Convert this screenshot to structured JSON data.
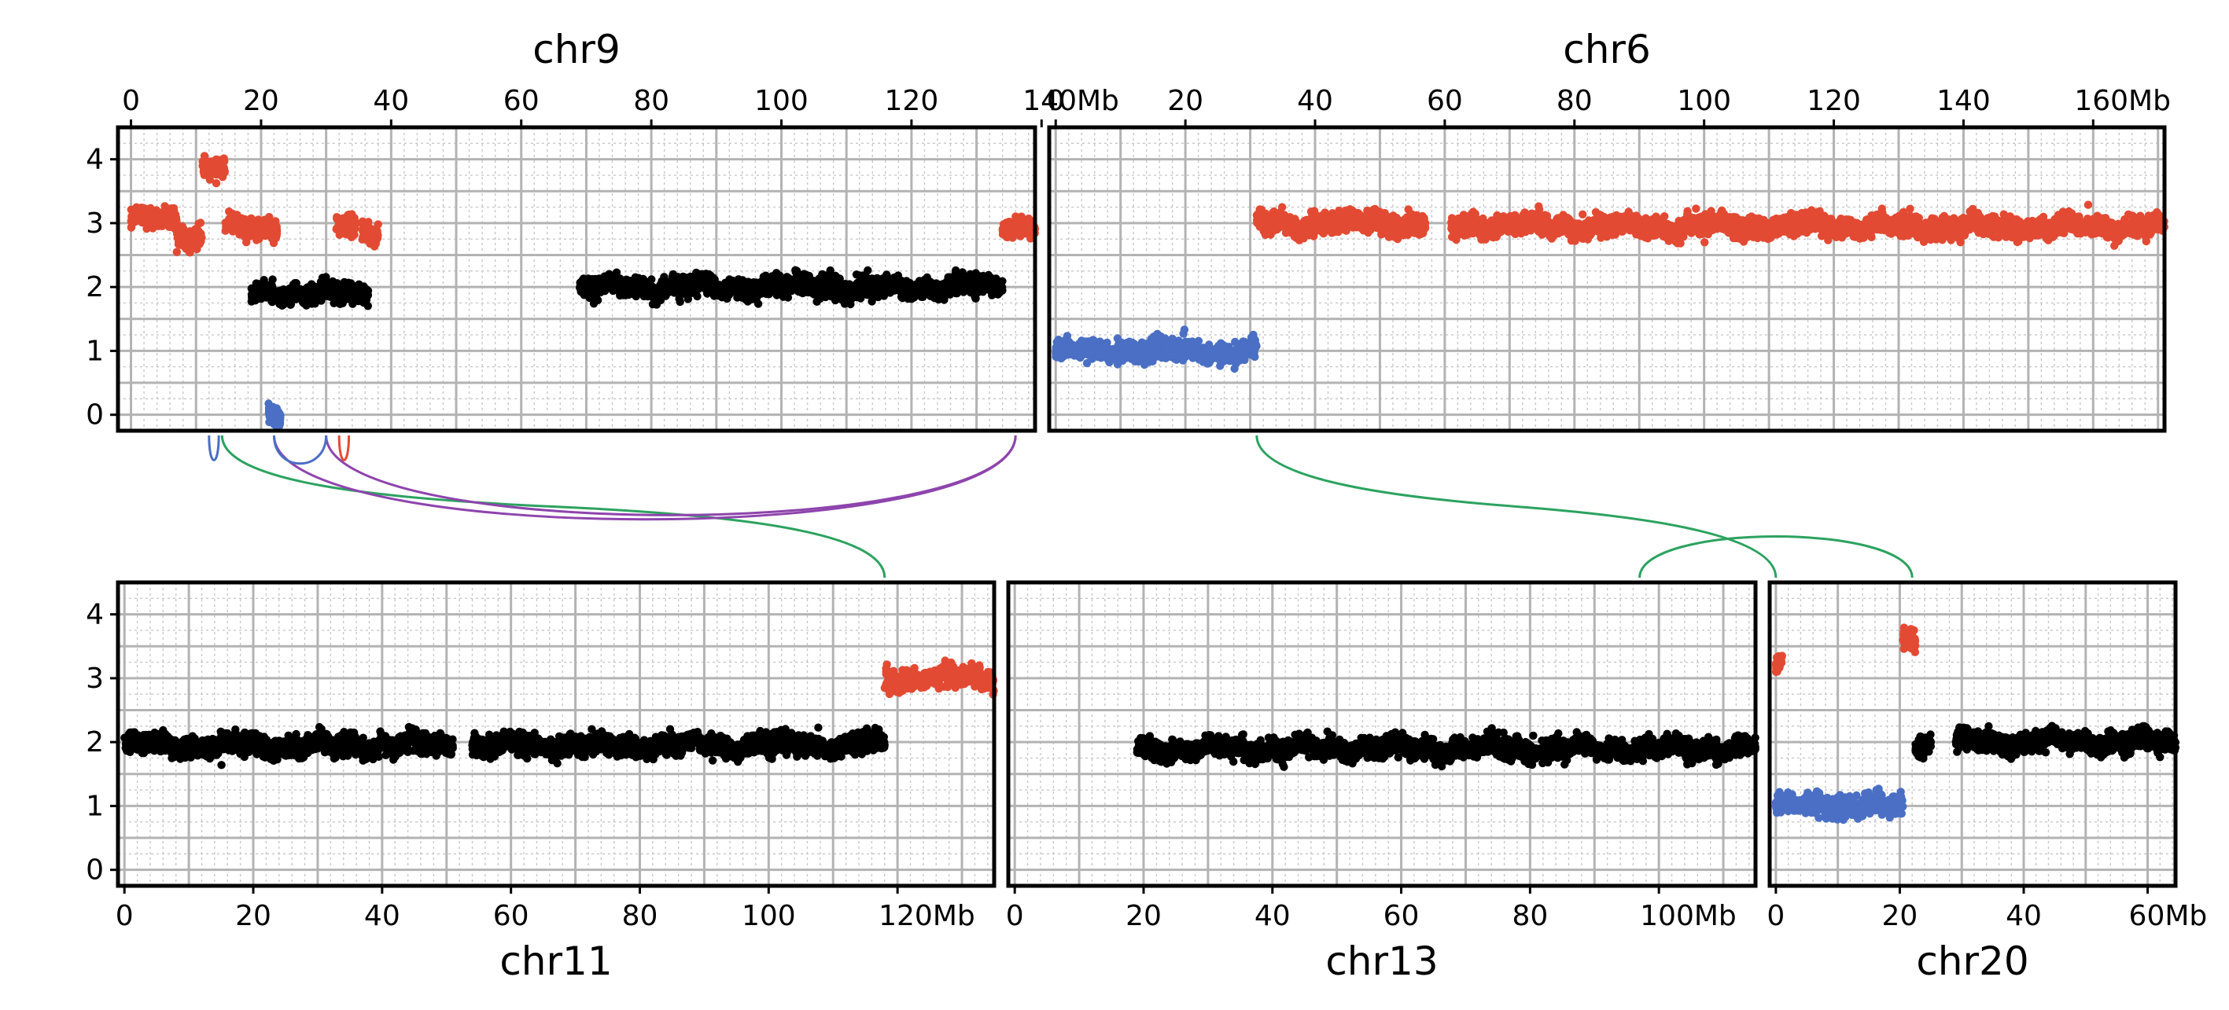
{
  "chart_data": {
    "type": "scatter",
    "y_ticks": [
      "0",
      "1",
      "2",
      "3",
      "4"
    ],
    "ylim": [
      -0.25,
      4.5
    ],
    "grid": true,
    "colors": {
      "gain": "#e34a33",
      "loss": "#4a6fc4",
      "neutral": "#000000",
      "sv_green": "#2ca25f",
      "sv_purple": "#8e44ad",
      "sv_blue": "#4a6fc4",
      "sv_red": "#e34a33"
    },
    "panels": [
      {
        "id": "chr9",
        "title": "chr9",
        "row": "top",
        "x_range": [
          -2,
          139
        ],
        "x_ticks": [
          0,
          20,
          40,
          60,
          80,
          100,
          120
        ],
        "x_tick_labels": [
          "0",
          "20",
          "40",
          "60",
          "80",
          "100",
          "120"
        ],
        "last_tick_label": "140Mb",
        "segments": [
          {
            "start": 0,
            "end": 7,
            "cn": 3.05,
            "color": "gain"
          },
          {
            "start": 7,
            "end": 11,
            "cn": 2.8,
            "color": "gain"
          },
          {
            "start": 11,
            "end": 14.5,
            "cn": 3.9,
            "color": "gain"
          },
          {
            "start": 14.5,
            "end": 20,
            "cn": 2.9,
            "color": "gain"
          },
          {
            "start": 20.5,
            "end": 22.5,
            "cn": 2.9,
            "color": "gain"
          },
          {
            "start": 18.5,
            "end": 36.5,
            "cn": 1.9,
            "color": "neutral"
          },
          {
            "start": 21,
            "end": 23,
            "cn": 0.02,
            "color": "loss"
          },
          {
            "start": 31.5,
            "end": 34.5,
            "cn": 2.95,
            "color": "gain"
          },
          {
            "start": 35.5,
            "end": 38,
            "cn": 2.9,
            "color": "gain"
          },
          {
            "start": 69,
            "end": 134,
            "cn": 2.0,
            "color": "neutral"
          },
          {
            "start": 134,
            "end": 139,
            "cn": 2.95,
            "color": "gain"
          }
        ]
      },
      {
        "id": "chr6",
        "title": "chr6",
        "row": "top",
        "x_range": [
          -1,
          171
        ],
        "x_ticks": [
          0,
          20,
          40,
          60,
          80,
          100,
          120,
          140
        ],
        "x_tick_labels": [
          "0",
          "20",
          "40",
          "60",
          "80",
          "100",
          "120",
          "140"
        ],
        "last_tick_label": "160Mb",
        "segments": [
          {
            "start": 0,
            "end": 31,
            "cn": 1.0,
            "color": "loss"
          },
          {
            "start": 31,
            "end": 57,
            "cn": 3.0,
            "color": "gain"
          },
          {
            "start": 61,
            "end": 171,
            "cn": 2.95,
            "color": "gain"
          }
        ]
      },
      {
        "id": "chr11",
        "title": "chr11",
        "row": "bottom",
        "x_range": [
          -1,
          135
        ],
        "x_ticks": [
          0,
          20,
          40,
          60,
          80,
          100
        ],
        "x_tick_labels": [
          "0",
          "20",
          "40",
          "60",
          "80",
          "100"
        ],
        "last_tick_label": "120Mb",
        "segments": [
          {
            "start": 0,
            "end": 51,
            "cn": 1.95,
            "color": "neutral"
          },
          {
            "start": 54,
            "end": 118,
            "cn": 1.95,
            "color": "neutral"
          },
          {
            "start": 118,
            "end": 135,
            "cn": 3.0,
            "color": "gain"
          }
        ]
      },
      {
        "id": "chr13",
        "title": "chr13",
        "row": "bottom",
        "x_range": [
          -1,
          115
        ],
        "x_ticks": [
          0,
          20,
          40,
          60,
          80
        ],
        "x_tick_labels": [
          "0",
          "20",
          "40",
          "60",
          "80"
        ],
        "last_tick_label": "100Mb",
        "segments": [
          {
            "start": 19,
            "end": 115,
            "cn": 1.9,
            "color": "neutral"
          }
        ]
      },
      {
        "id": "chr20",
        "title": "chr20",
        "row": "bottom",
        "x_range": [
          -1,
          64.5
        ],
        "x_ticks": [
          0,
          20,
          40
        ],
        "x_tick_labels": [
          "0",
          "20",
          "40"
        ],
        "last_tick_label": "60Mb",
        "segments": [
          {
            "start": 0,
            "end": 1,
            "cn": 3.2,
            "color": "gain"
          },
          {
            "start": 0,
            "end": 20.5,
            "cn": 1.0,
            "color": "loss"
          },
          {
            "start": 20.5,
            "end": 22.5,
            "cn": 3.6,
            "color": "gain"
          },
          {
            "start": 22.5,
            "end": 25,
            "cn": 2.0,
            "color": "neutral"
          },
          {
            "start": 29,
            "end": 64.5,
            "cn": 2.0,
            "color": "neutral"
          }
        ]
      }
    ],
    "sv_links": [
      {
        "from": {
          "chr": "chr9",
          "pos": 14
        },
        "to": {
          "chr": "chr11",
          "pos": 118
        },
        "color": "sv_green"
      },
      {
        "from": {
          "chr": "chr9",
          "pos": 22
        },
        "to": {
          "chr": "chr9",
          "pos": 136
        },
        "color": "sv_purple"
      },
      {
        "from": {
          "chr": "chr9",
          "pos": 30
        },
        "to": {
          "chr": "chr9",
          "pos": 136
        },
        "color": "sv_purple"
      },
      {
        "from": {
          "chr": "chr9",
          "pos": 12
        },
        "to": {
          "chr": "chr9",
          "pos": 13.5
        },
        "color": "sv_blue"
      },
      {
        "from": {
          "chr": "chr9",
          "pos": 22
        },
        "to": {
          "chr": "chr9",
          "pos": 30
        },
        "color": "sv_blue"
      },
      {
        "from": {
          "chr": "chr9",
          "pos": 32
        },
        "to": {
          "chr": "chr9",
          "pos": 33.5
        },
        "color": "sv_red"
      },
      {
        "from": {
          "chr": "chr6",
          "pos": 31
        },
        "to": {
          "chr": "chr20",
          "pos": 0
        },
        "color": "sv_green"
      },
      {
        "from": {
          "chr": "chr13",
          "pos": 97
        },
        "to": {
          "chr": "chr20",
          "pos": 22
        },
        "color": "sv_green"
      }
    ]
  }
}
